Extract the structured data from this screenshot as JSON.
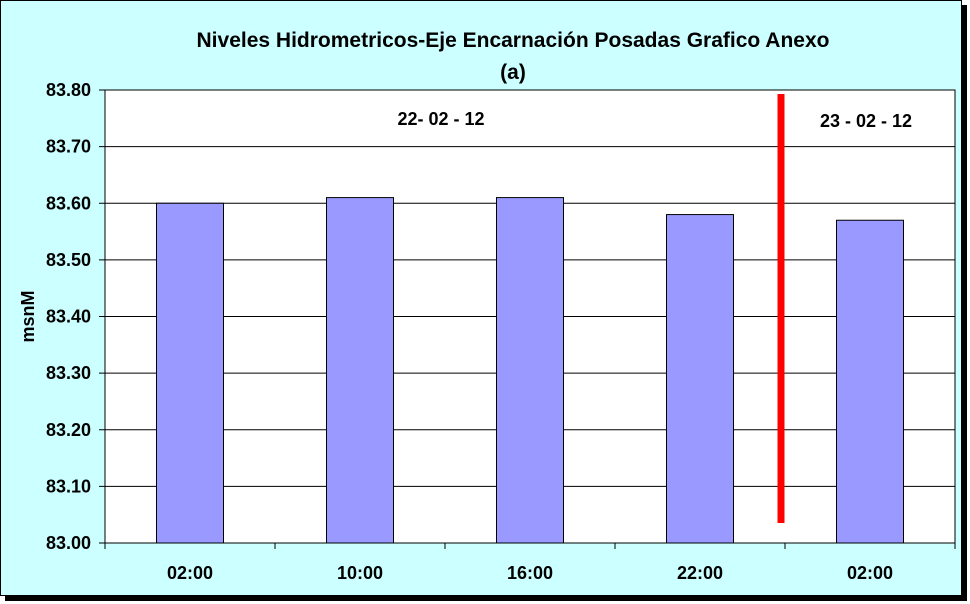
{
  "chart_data": {
    "type": "bar",
    "title": "Niveles Hidrometricos-Eje Encarnación Posadas Grafico Anexo",
    "subtitle": "(a)",
    "ylabel": "msnM",
    "xlabel": "",
    "categories": [
      "02:00",
      "10:00",
      "16:00",
      "22:00",
      "02:00"
    ],
    "values": [
      83.6,
      83.61,
      83.61,
      83.58,
      83.57
    ],
    "ylim": [
      83.0,
      83.8
    ],
    "yticks": [
      "83.00",
      "83.10",
      "83.20",
      "83.30",
      "83.40",
      "83.50",
      "83.60",
      "83.70",
      "83.80"
    ],
    "grid": true,
    "annotations": [
      {
        "text": "22- 02 - 12"
      },
      {
        "text": "23 - 02 - 12"
      }
    ],
    "separator_between": [
      3,
      4
    ],
    "colors": {
      "bar": "#9999ff",
      "background": "#ccffff",
      "plot": "#ffffff",
      "separator": "#ff0000"
    }
  }
}
